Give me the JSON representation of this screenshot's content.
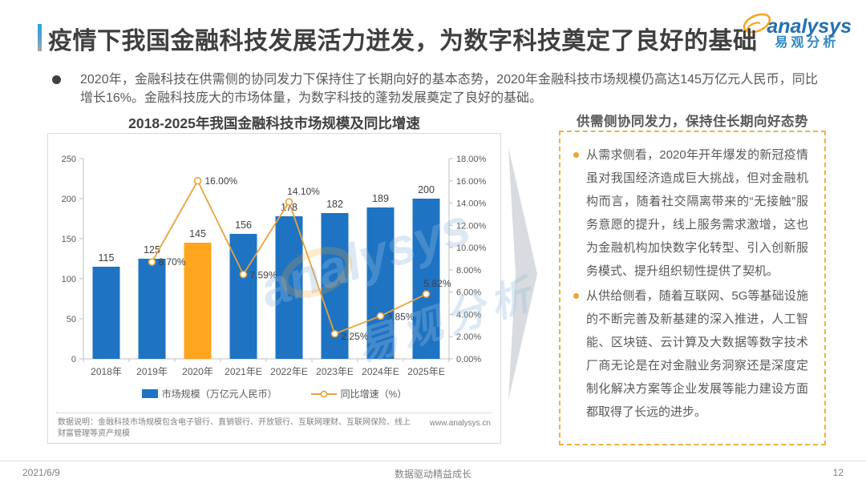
{
  "header": {
    "title": "疫情下我国金融科技发展活力迸发，为数字科技奠定了良好的基础",
    "logo": {
      "brand": "analysys",
      "brand_cn": "易观分析"
    }
  },
  "intro": {
    "text": "2020年，金融科技在供需侧的协同发力下保持住了长期向好的基本态势，2020年金融科技市场规模仍高达145万亿元人民币，同比增长16%。金融科技庞大的市场体量，为数字科技的蓬勃发展奠定了良好的基础。"
  },
  "chart_data": {
    "type": "bar",
    "title": "2018-2025年我国金融科技市场规模及同比增速",
    "categories": [
      "2018年",
      "2019年",
      "2020年",
      "2021年E",
      "2022年E",
      "2023年E",
      "2024年E",
      "2025年E"
    ],
    "series": [
      {
        "name": "市场规模（万亿元人民币）",
        "type": "bar",
        "values": [
          115,
          125,
          145,
          156,
          178,
          182,
          189,
          200
        ],
        "color": "#1e73c3",
        "highlight_index": 2,
        "highlight_color": "#ffa51e"
      },
      {
        "name": "同比增速（%）",
        "type": "line",
        "values": [
          null,
          8.7,
          16.0,
          7.59,
          14.1,
          2.25,
          3.85,
          5.82
        ],
        "labels": [
          "",
          "8.70%",
          "16.00%",
          "7.59%",
          "14.10%",
          "2.25%",
          "3.85%",
          "5.82%"
        ],
        "label_offsets": [
          [
            0,
            0
          ],
          [
            8,
            4
          ],
          [
            9,
            4
          ],
          [
            8,
            5
          ],
          [
            18,
            -9
          ],
          [
            8,
            7
          ],
          [
            8,
            5
          ],
          [
            14,
            -9
          ]
        ],
        "color": "#e9a23b"
      }
    ],
    "left_axis": {
      "min": 0,
      "max": 250,
      "step": 50,
      "ticks": [
        "0",
        "50",
        "100",
        "150",
        "200",
        "250"
      ]
    },
    "right_axis": {
      "min": 0,
      "max": 18,
      "step": 2,
      "ticks": [
        "0.00%",
        "2.00%",
        "4.00%",
        "6.00%",
        "8.00%",
        "10.00%",
        "12.00%",
        "14.00%",
        "16.00%",
        "18.00%"
      ]
    },
    "grid": false,
    "legend_position": "bottom"
  },
  "chart_note": {
    "label": "数据说明：金融科技市场规模包含电子银行、直销银行、开放银行、互联网理财、互联网保险、线上财富管理等资产规模",
    "website": "www.analysys.cn"
  },
  "panel": {
    "header": "供需侧协同发力，保持住长期向好态势",
    "bullets": [
      {
        "text": "从需求侧看，2020年开年爆发的新冠疫情虽对我国经济造成巨大挑战，但对金融机构而言，随着社交隔离带来的“无接触”服务意愿的提升，线上服务需求激增，这也为金融机构加快数字化转型、引入创新服务模式、提升组织韧性提供了契机。"
      },
      {
        "text": "从供给侧看，随着互联网、5G等基础设施的不断完善及新基建的深入推进，人工智能、区块链、云计算及大数据等数字技术厂商无论是在对金融业务洞察还是深度定制化解决方案等企业发展等能力建设方面都取得了长远的进步。"
      }
    ]
  },
  "watermark": {
    "brand": "analysys",
    "brand_cn": "易观分析"
  },
  "footer": {
    "date": "2021/6/9",
    "center": "数据驱动精益成长",
    "page": "12"
  },
  "colors": {
    "bar_blue": "#1e73c3",
    "bar_orange": "#ffa51e",
    "line_orange": "#e9a23b",
    "panel_border": "#f0b13c",
    "accent_top": "#29a8e0",
    "text_dark": "#3f3f3f",
    "text_body": "#595959",
    "text_muted": "#808080"
  }
}
